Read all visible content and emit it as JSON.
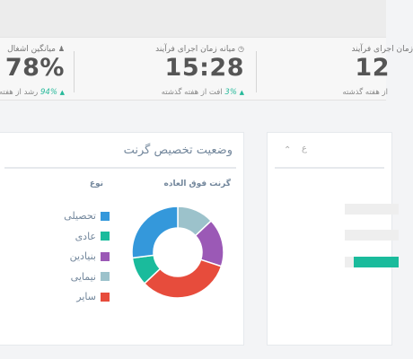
{
  "stats": [
    {
      "label": "میانگین اشغال",
      "value": "78%",
      "delta_pct": "94%",
      "delta_text": "رشد از هفته",
      "icon": "user-icon"
    },
    {
      "label": "میانه زمان اجرای فرآیند",
      "value": "15:28",
      "delta_pct": "3%",
      "delta_text": "افت از هفته گذشته",
      "icon": "clock-icon"
    },
    {
      "label": "زمان اجرای فرآیند",
      "value": "12",
      "delta_pct": "",
      "delta_text": "از هفته گذشته",
      "icon": ""
    }
  ],
  "grant_panel": {
    "title": "وضعیت تخصیص گرنت",
    "chart_header": "گرنت فوق العاده",
    "legend_header": "نوع"
  },
  "chart_data": {
    "type": "pie",
    "title": "",
    "categories": [
      "تحصیلی",
      "عادی",
      "بنیادین",
      "نیمایی",
      "سایر"
    ],
    "colors": [
      "#3498db",
      "#1abb9c",
      "#9b59b6",
      "#9cc2cb",
      "#e74c3c"
    ],
    "order_clockwise": [
      "نیمایی",
      "بنیادین",
      "سایر",
      "عادی",
      "تحصیلی"
    ],
    "values": [
      27,
      10,
      17,
      13,
      33
    ],
    "donut": true
  },
  "left_panel": {
    "title_fragment": "ع",
    "chevron": "chevron-up-icon"
  },
  "colors": {
    "accent": "#26b99a",
    "title": "#73879c"
  }
}
